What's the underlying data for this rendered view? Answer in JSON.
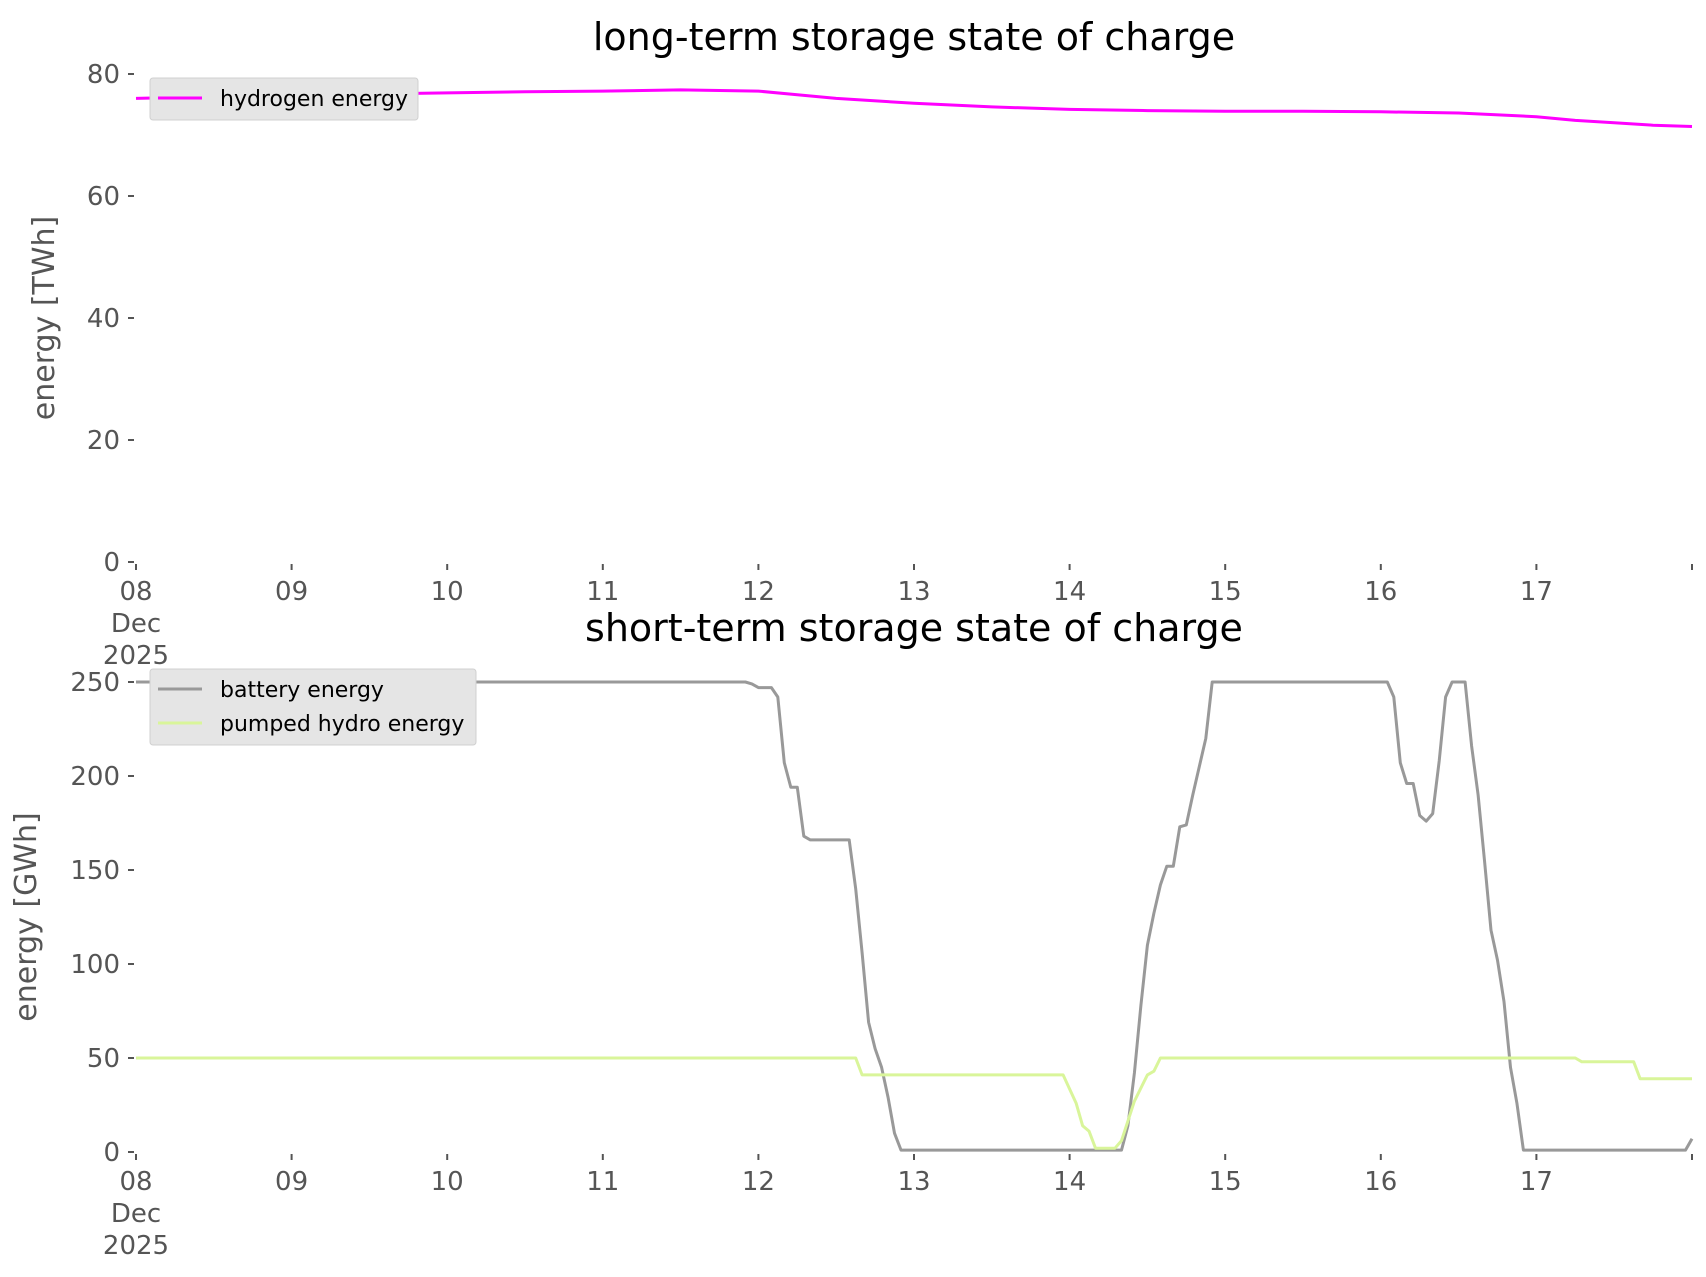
{
  "chart_data": [
    {
      "type": "line",
      "title": "long-term storage state of charge",
      "xlabel": "",
      "ylabel": "energy [TWh]",
      "xlim": [
        "2025-12-08",
        "2025-12-18"
      ],
      "ylim": [
        0,
        80
      ],
      "yticks": [
        "0",
        "20",
        "40",
        "60",
        "80"
      ],
      "xtick_labels": [
        {
          "lines": [
            "08",
            "Dec",
            "2025"
          ]
        },
        {
          "lines": [
            "09"
          ]
        },
        {
          "lines": [
            "10"
          ]
        },
        {
          "lines": [
            "11"
          ]
        },
        {
          "lines": [
            "12"
          ]
        },
        {
          "lines": [
            "13"
          ]
        },
        {
          "lines": [
            "14"
          ]
        },
        {
          "lines": [
            "15"
          ]
        },
        {
          "lines": [
            "16"
          ]
        },
        {
          "lines": [
            "17"
          ]
        }
      ],
      "grid": false,
      "legend_position": "top-left",
      "series": [
        {
          "name": "hydrogen energy",
          "color": "#ff00ff",
          "points": [
            [
              "2025-12-08 00:00",
              76.0
            ],
            [
              "2025-12-08 12:00",
              76.3
            ],
            [
              "2025-12-09 00:00",
              76.5
            ],
            [
              "2025-12-09 12:00",
              76.7
            ],
            [
              "2025-12-10 00:00",
              76.9
            ],
            [
              "2025-12-10 12:00",
              77.1
            ],
            [
              "2025-12-11 00:00",
              77.2
            ],
            [
              "2025-12-11 12:00",
              77.4
            ],
            [
              "2025-12-12 00:00",
              77.2
            ],
            [
              "2025-12-12 06:00",
              76.6
            ],
            [
              "2025-12-12 12:00",
              76.0
            ],
            [
              "2025-12-13 00:00",
              75.2
            ],
            [
              "2025-12-13 12:00",
              74.6
            ],
            [
              "2025-12-14 00:00",
              74.2
            ],
            [
              "2025-12-14 12:00",
              74.0
            ],
            [
              "2025-12-15 00:00",
              73.9
            ],
            [
              "2025-12-15 12:00",
              73.9
            ],
            [
              "2025-12-16 00:00",
              73.8
            ],
            [
              "2025-12-16 12:00",
              73.6
            ],
            [
              "2025-12-17 00:00",
              73.0
            ],
            [
              "2025-12-17 06:00",
              72.4
            ],
            [
              "2025-12-17 12:00",
              72.0
            ],
            [
              "2025-12-17 18:00",
              71.6
            ],
            [
              "2025-12-18 00:00",
              71.4
            ]
          ]
        }
      ]
    },
    {
      "type": "line",
      "title": "short-term storage state of charge",
      "xlabel": "",
      "ylabel": "energy [GWh]",
      "xlim": [
        "2025-12-08",
        "2025-12-18"
      ],
      "ylim": [
        0,
        250
      ],
      "yticks": [
        "0",
        "50",
        "100",
        "150",
        "200",
        "250"
      ],
      "xtick_labels": [
        {
          "lines": [
            "08",
            "Dec",
            "2025"
          ]
        },
        {
          "lines": [
            "09"
          ]
        },
        {
          "lines": [
            "10"
          ]
        },
        {
          "lines": [
            "11"
          ]
        },
        {
          "lines": [
            "12"
          ]
        },
        {
          "lines": [
            "13"
          ]
        },
        {
          "lines": [
            "14"
          ]
        },
        {
          "lines": [
            "15"
          ]
        },
        {
          "lines": [
            "16"
          ]
        },
        {
          "lines": [
            "17"
          ]
        }
      ],
      "grid": false,
      "legend_position": "top-left",
      "series": [
        {
          "name": "battery energy",
          "color": "#999999",
          "points": [
            [
              "2025-12-08 00:00",
              250
            ],
            [
              "2025-12-11 22:00",
              250
            ],
            [
              "2025-12-11 23:00",
              249
            ],
            [
              "2025-12-12 00:00",
              247
            ],
            [
              "2025-12-12 02:00",
              247
            ],
            [
              "2025-12-12 03:00",
              242
            ],
            [
              "2025-12-12 04:00",
              207
            ],
            [
              "2025-12-12 05:00",
              194
            ],
            [
              "2025-12-12 06:00",
              194
            ],
            [
              "2025-12-12 07:00",
              168
            ],
            [
              "2025-12-12 08:00",
              166
            ],
            [
              "2025-12-12 14:00",
              166
            ],
            [
              "2025-12-12 15:00",
              140
            ],
            [
              "2025-12-12 16:00",
              106
            ],
            [
              "2025-12-12 17:00",
              69
            ],
            [
              "2025-12-12 18:00",
              55
            ],
            [
              "2025-12-12 19:00",
              45
            ],
            [
              "2025-12-12 20:00",
              29
            ],
            [
              "2025-12-12 21:00",
              10
            ],
            [
              "2025-12-12 22:00",
              1
            ],
            [
              "2025-12-14 08:00",
              1
            ],
            [
              "2025-12-14 09:00",
              14
            ],
            [
              "2025-12-14 10:00",
              42
            ],
            [
              "2025-12-14 11:00",
              78
            ],
            [
              "2025-12-14 12:00",
              110
            ],
            [
              "2025-12-14 13:00",
              127
            ],
            [
              "2025-12-14 14:00",
              142
            ],
            [
              "2025-12-14 15:00",
              152
            ],
            [
              "2025-12-14 16:00",
              152
            ],
            [
              "2025-12-14 17:00",
              173
            ],
            [
              "2025-12-14 18:00",
              174
            ],
            [
              "2025-12-14 19:00",
              190
            ],
            [
              "2025-12-14 21:00",
              220
            ],
            [
              "2025-12-14 22:00",
              250
            ],
            [
              "2025-12-16 01:00",
              250
            ],
            [
              "2025-12-16 02:00",
              242
            ],
            [
              "2025-12-16 03:00",
              207
            ],
            [
              "2025-12-16 04:00",
              196
            ],
            [
              "2025-12-16 05:00",
              196
            ],
            [
              "2025-12-16 06:00",
              179
            ],
            [
              "2025-12-16 07:00",
              176
            ],
            [
              "2025-12-16 08:00",
              180
            ],
            [
              "2025-12-16 09:00",
              208
            ],
            [
              "2025-12-16 10:00",
              242
            ],
            [
              "2025-12-16 11:00",
              250
            ],
            [
              "2025-12-16 13:00",
              250
            ],
            [
              "2025-12-16 14:00",
              216
            ],
            [
              "2025-12-16 15:00",
              190
            ],
            [
              "2025-12-16 16:00",
              155
            ],
            [
              "2025-12-16 17:00",
              118
            ],
            [
              "2025-12-16 18:00",
              102
            ],
            [
              "2025-12-16 19:00",
              80
            ],
            [
              "2025-12-16 20:00",
              45
            ],
            [
              "2025-12-16 21:00",
              26
            ],
            [
              "2025-12-16 22:00",
              1
            ],
            [
              "2025-12-17 23:00",
              1
            ],
            [
              "2025-12-18 00:00",
              7
            ]
          ]
        },
        {
          "name": "pumped hydro energy",
          "color": "#d9f59a",
          "points": [
            [
              "2025-12-08 00:00",
              50
            ],
            [
              "2025-12-12 15:00",
              50
            ],
            [
              "2025-12-12 16:00",
              41
            ],
            [
              "2025-12-13 23:00",
              41
            ],
            [
              "2025-12-14 01:00",
              26
            ],
            [
              "2025-12-14 02:00",
              14
            ],
            [
              "2025-12-14 03:00",
              11
            ],
            [
              "2025-12-14 04:00",
              2
            ],
            [
              "2025-12-14 07:00",
              2
            ],
            [
              "2025-12-14 08:00",
              6
            ],
            [
              "2025-12-14 10:00",
              27
            ],
            [
              "2025-12-14 12:00",
              41
            ],
            [
              "2025-12-14 13:00",
              43
            ],
            [
              "2025-12-14 14:00",
              50
            ],
            [
              "2025-12-17 06:00",
              50
            ],
            [
              "2025-12-17 07:00",
              48
            ],
            [
              "2025-12-17 15:00",
              48
            ],
            [
              "2025-12-17 16:00",
              39
            ],
            [
              "2025-12-18 00:00",
              39
            ]
          ]
        }
      ]
    }
  ]
}
